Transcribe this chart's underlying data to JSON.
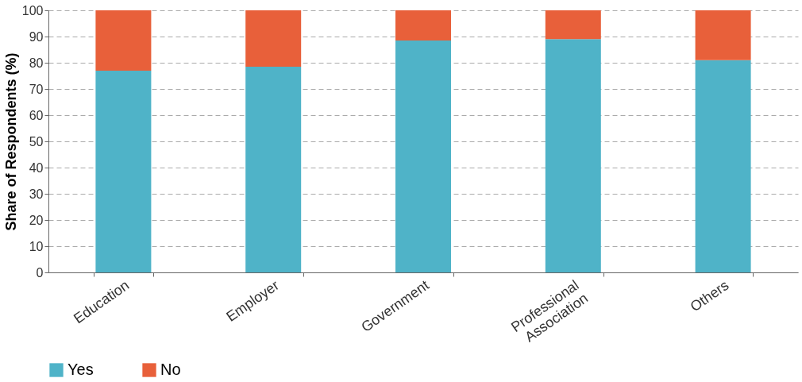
{
  "chart_data": {
    "type": "bar",
    "stacked": true,
    "ylabel": "Share of Respondents (%)",
    "categories": [
      "Education",
      "Employer",
      "Government",
      "Professional Association",
      "Others"
    ],
    "series": [
      {
        "name": "Yes",
        "color": "#4fb3c8",
        "values": [
          77,
          78.5,
          88.5,
          89,
          81
        ]
      },
      {
        "name": "No",
        "color": "#e8603a",
        "values": [
          23,
          21.5,
          11.5,
          11,
          19
        ]
      }
    ],
    "ylim": [
      0,
      100
    ],
    "yticks": [
      0,
      10,
      20,
      30,
      40,
      50,
      60,
      70,
      80,
      90,
      100
    ],
    "grid": "y",
    "legend": "bottom"
  }
}
